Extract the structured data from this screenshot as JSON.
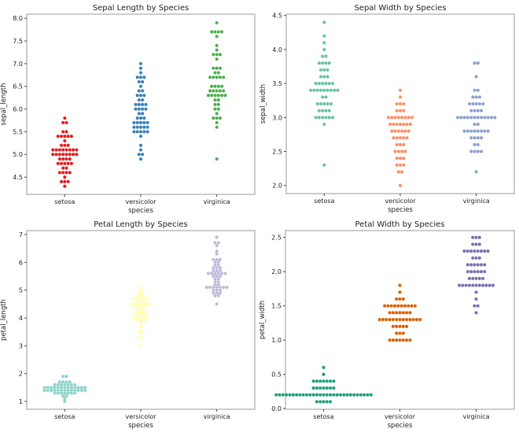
{
  "chart_data": [
    {
      "type": "scatter",
      "subtype": "swarm",
      "title": "Sepal Length by Species",
      "xlabel": "species",
      "ylabel": "sepal_length",
      "categories": [
        "setosa",
        "versicolor",
        "virginica"
      ],
      "yticks": [
        "4.5",
        "5.0",
        "5.5",
        "6.0",
        "6.5",
        "7.0",
        "7.5",
        "8.0"
      ],
      "ylim": [
        4.12,
        8.09
      ],
      "grid": false,
      "colors": [
        "#e41a1c",
        "#377eb8",
        "#4daf4a"
      ],
      "values": [
        [
          5.1,
          4.9,
          4.7,
          4.6,
          5.0,
          5.4,
          4.6,
          5.0,
          4.4,
          4.9,
          5.4,
          4.8,
          4.8,
          4.3,
          5.8,
          5.7,
          5.4,
          5.1,
          5.7,
          5.1,
          5.4,
          5.1,
          4.6,
          5.1,
          4.8,
          5.0,
          5.0,
          5.2,
          5.2,
          4.7,
          4.8,
          5.4,
          5.2,
          5.5,
          4.9,
          5.0,
          5.5,
          4.9,
          4.4,
          5.1,
          5.0,
          4.5,
          4.4,
          5.0,
          5.1,
          4.8,
          5.1,
          4.6,
          5.3,
          5.0
        ],
        [
          7.0,
          6.4,
          6.9,
          5.5,
          6.5,
          5.7,
          6.3,
          4.9,
          6.6,
          5.2,
          5.0,
          5.9,
          6.0,
          6.1,
          5.6,
          6.7,
          5.6,
          5.8,
          6.2,
          5.6,
          5.9,
          6.1,
          6.3,
          6.1,
          6.4,
          6.6,
          6.8,
          6.7,
          6.0,
          5.7,
          5.5,
          5.5,
          5.8,
          6.0,
          5.4,
          6.0,
          6.7,
          6.3,
          5.6,
          5.5,
          5.5,
          6.1,
          5.8,
          5.0,
          5.6,
          5.7,
          5.7,
          6.2,
          5.1,
          5.7
        ],
        [
          6.3,
          5.8,
          7.1,
          6.3,
          6.5,
          7.6,
          4.9,
          7.3,
          6.7,
          7.2,
          6.5,
          6.4,
          6.8,
          5.7,
          5.8,
          6.4,
          6.5,
          7.7,
          7.7,
          6.0,
          6.9,
          5.6,
          7.7,
          6.3,
          6.7,
          7.2,
          6.2,
          6.1,
          6.4,
          7.2,
          7.4,
          7.9,
          6.4,
          6.3,
          6.1,
          7.7,
          6.3,
          6.4,
          6.0,
          6.9,
          6.7,
          6.9,
          5.8,
          6.8,
          6.7,
          6.7,
          6.3,
          6.5,
          6.2,
          5.9
        ]
      ]
    },
    {
      "type": "scatter",
      "subtype": "swarm",
      "title": "Sepal Width by Species",
      "xlabel": "species",
      "ylabel": "sepal_width",
      "categories": [
        "setosa",
        "versicolor",
        "virginica"
      ],
      "yticks": [
        "2.0",
        "2.5",
        "3.0",
        "3.5",
        "4.0",
        "4.5"
      ],
      "ylim": [
        1.88,
        4.52
      ],
      "grid": false,
      "colors": [
        "#66c2a5",
        "#fc8d62",
        "#8da0cb"
      ],
      "values": [
        [
          3.5,
          3.0,
          3.2,
          3.1,
          3.6,
          3.9,
          3.4,
          3.4,
          2.9,
          3.1,
          3.7,
          3.4,
          3.0,
          3.0,
          4.0,
          4.4,
          3.9,
          3.5,
          3.8,
          3.8,
          3.4,
          3.7,
          3.6,
          3.3,
          3.4,
          3.0,
          3.4,
          3.5,
          3.4,
          3.2,
          3.1,
          3.4,
          4.1,
          4.2,
          3.1,
          3.2,
          3.5,
          3.6,
          3.0,
          3.4,
          3.5,
          2.3,
          3.2,
          3.5,
          3.8,
          3.0,
          3.8,
          3.2,
          3.7,
          3.3
        ],
        [
          3.2,
          3.2,
          3.1,
          2.3,
          2.8,
          2.8,
          3.3,
          2.4,
          2.9,
          2.7,
          2.0,
          3.0,
          2.2,
          2.9,
          2.9,
          3.1,
          3.0,
          2.7,
          2.2,
          2.5,
          3.2,
          2.8,
          2.5,
          2.8,
          2.9,
          3.0,
          2.8,
          3.0,
          2.9,
          2.6,
          2.4,
          2.4,
          2.7,
          2.7,
          3.0,
          3.4,
          3.1,
          2.3,
          3.0,
          2.5,
          2.6,
          3.0,
          2.6,
          2.3,
          2.7,
          3.0,
          2.9,
          2.9,
          2.5,
          2.8
        ],
        [
          3.3,
          2.7,
          3.0,
          2.9,
          3.0,
          3.0,
          2.5,
          2.9,
          2.5,
          3.6,
          3.2,
          2.7,
          3.0,
          2.5,
          2.8,
          3.2,
          3.0,
          3.8,
          2.6,
          2.2,
          3.2,
          2.8,
          2.8,
          2.7,
          3.3,
          3.2,
          2.8,
          3.0,
          2.8,
          3.0,
          2.8,
          3.8,
          2.8,
          2.8,
          2.6,
          3.0,
          3.4,
          3.1,
          3.0,
          3.1,
          3.1,
          3.1,
          2.7,
          3.2,
          3.3,
          3.0,
          2.5,
          3.0,
          3.4,
          3.0
        ]
      ]
    },
    {
      "type": "scatter",
      "subtype": "swarm",
      "title": "Petal Length by Species",
      "xlabel": "species",
      "ylabel": "petal_length",
      "categories": [
        "setosa",
        "versicolor",
        "virginica"
      ],
      "yticks": [
        "1",
        "2",
        "3",
        "4",
        "5",
        "6",
        "7"
      ],
      "ylim": [
        0.72,
        7.14
      ],
      "grid": false,
      "colors": [
        "#8dd3c7",
        "#ffffb3",
        "#bebada"
      ],
      "values": [
        [
          1.4,
          1.4,
          1.3,
          1.5,
          1.4,
          1.7,
          1.4,
          1.5,
          1.4,
          1.5,
          1.5,
          1.6,
          1.4,
          1.1,
          1.2,
          1.5,
          1.3,
          1.4,
          1.7,
          1.5,
          1.7,
          1.5,
          1.0,
          1.7,
          1.9,
          1.6,
          1.6,
          1.5,
          1.4,
          1.6,
          1.6,
          1.5,
          1.5,
          1.4,
          1.5,
          1.2,
          1.3,
          1.4,
          1.3,
          1.5,
          1.3,
          1.3,
          1.3,
          1.6,
          1.9,
          1.4,
          1.6,
          1.4,
          1.5,
          1.4
        ],
        [
          4.7,
          4.5,
          4.9,
          4.0,
          4.6,
          4.5,
          4.7,
          3.3,
          4.6,
          3.9,
          3.5,
          4.2,
          4.0,
          4.7,
          3.6,
          4.4,
          4.5,
          4.1,
          4.5,
          3.9,
          4.8,
          4.0,
          4.9,
          4.7,
          4.3,
          4.4,
          4.8,
          5.0,
          4.5,
          3.5,
          3.8,
          3.7,
          3.9,
          5.1,
          4.5,
          4.5,
          4.7,
          4.4,
          4.1,
          4.0,
          4.4,
          4.6,
          4.0,
          3.3,
          4.2,
          4.2,
          4.2,
          4.3,
          3.0,
          4.1
        ],
        [
          6.0,
          5.1,
          5.9,
          5.6,
          5.8,
          6.6,
          4.5,
          6.3,
          5.8,
          6.1,
          5.1,
          5.3,
          5.5,
          5.0,
          5.1,
          5.3,
          5.5,
          6.7,
          6.9,
          5.0,
          5.7,
          4.9,
          6.7,
          4.9,
          5.7,
          6.0,
          4.8,
          4.9,
          5.6,
          5.8,
          6.1,
          6.4,
          5.6,
          5.1,
          5.6,
          6.1,
          5.6,
          5.5,
          4.8,
          5.4,
          5.6,
          5.1,
          5.1,
          5.9,
          5.7,
          5.2,
          5.0,
          5.2,
          5.4,
          5.1
        ]
      ]
    },
    {
      "type": "scatter",
      "subtype": "swarm",
      "title": "Petal Width by Species",
      "xlabel": "species",
      "ylabel": "petal_width",
      "categories": [
        "setosa",
        "versicolor",
        "virginica"
      ],
      "yticks": [
        "0.0",
        "0.5",
        "1.0",
        "1.5",
        "2.0",
        "2.5"
      ],
      "ylim": [
        -0.01,
        2.6
      ],
      "grid": false,
      "colors": [
        "#1b9e77",
        "#d95f02",
        "#7570b3"
      ],
      "values": [
        [
          0.2,
          0.2,
          0.2,
          0.2,
          0.2,
          0.4,
          0.3,
          0.2,
          0.2,
          0.1,
          0.2,
          0.2,
          0.1,
          0.1,
          0.2,
          0.4,
          0.4,
          0.3,
          0.3,
          0.3,
          0.2,
          0.4,
          0.2,
          0.5,
          0.2,
          0.2,
          0.4,
          0.2,
          0.2,
          0.2,
          0.2,
          0.4,
          0.1,
          0.2,
          0.2,
          0.2,
          0.2,
          0.1,
          0.2,
          0.2,
          0.3,
          0.3,
          0.2,
          0.6,
          0.4,
          0.3,
          0.2,
          0.2,
          0.2,
          0.2
        ],
        [
          1.4,
          1.5,
          1.5,
          1.3,
          1.5,
          1.3,
          1.6,
          1.0,
          1.3,
          1.4,
          1.0,
          1.5,
          1.0,
          1.4,
          1.3,
          1.4,
          1.5,
          1.0,
          1.5,
          1.1,
          1.8,
          1.3,
          1.5,
          1.2,
          1.3,
          1.4,
          1.4,
          1.7,
          1.5,
          1.0,
          1.1,
          1.0,
          1.2,
          1.6,
          1.5,
          1.6,
          1.5,
          1.3,
          1.3,
          1.3,
          1.2,
          1.4,
          1.2,
          1.0,
          1.3,
          1.2,
          1.3,
          1.3,
          1.1,
          1.3
        ],
        [
          2.5,
          1.9,
          2.1,
          1.8,
          2.2,
          2.1,
          1.7,
          1.8,
          1.8,
          2.5,
          2.0,
          1.9,
          2.1,
          2.0,
          2.4,
          2.3,
          1.8,
          2.2,
          2.3,
          1.5,
          2.3,
          2.0,
          2.0,
          1.8,
          2.1,
          1.8,
          1.8,
          1.8,
          2.1,
          1.6,
          1.9,
          2.0,
          2.2,
          1.5,
          1.4,
          2.3,
          2.4,
          1.8,
          1.8,
          2.1,
          2.4,
          2.3,
          1.9,
          2.3,
          2.5,
          2.3,
          1.9,
          2.0,
          2.3,
          1.8
        ]
      ]
    }
  ]
}
